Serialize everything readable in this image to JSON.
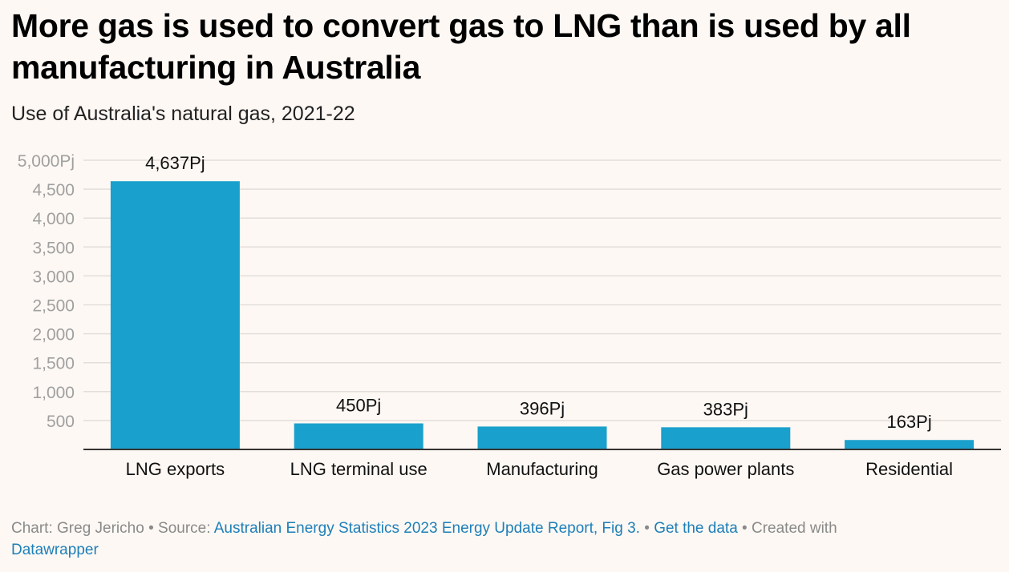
{
  "header": {
    "title": "More gas is used to convert gas to LNG than is used by all manufacturing in Australia",
    "subtitle": "Use of Australia's natural gas, 2021-22"
  },
  "footer": {
    "chart_prefix": "Chart: Greg Jericho",
    "sep1": " • ",
    "source_prefix": "Source: ",
    "source_link": "Australian Energy Statistics 2023 Energy Update Report, Fig 3.",
    "sep2": "  • ",
    "get_data": "Get the data",
    "sep3": " • ",
    "created_with": "Created with ",
    "datawrapper": "Datawrapper"
  },
  "colors": {
    "bar": "#1aa0cc",
    "gridline": "#e3ded9",
    "axis": "#333333",
    "tick_label": "#a0a0a0",
    "background": "#fdf8f4"
  },
  "chart_data": {
    "type": "bar",
    "categories": [
      "LNG exports",
      "LNG terminal use",
      "Manufacturing",
      "Gas power plants",
      "Residential"
    ],
    "values": [
      4637,
      450,
      396,
      383,
      163
    ],
    "data_labels": [
      "4,637Pj",
      "450Pj",
      "396Pj",
      "383Pj",
      "163Pj"
    ],
    "yticks": [
      500,
      1000,
      1500,
      2000,
      2500,
      3000,
      3500,
      4000,
      4500,
      5000
    ],
    "ytick_labels": [
      "500",
      "1,000",
      "1,500",
      "2,000",
      "2,500",
      "3,000",
      "3,500",
      "4,000",
      "4,500",
      "5,000Pj"
    ],
    "ylim": [
      0,
      5000
    ],
    "grid": true,
    "legend": "none"
  }
}
